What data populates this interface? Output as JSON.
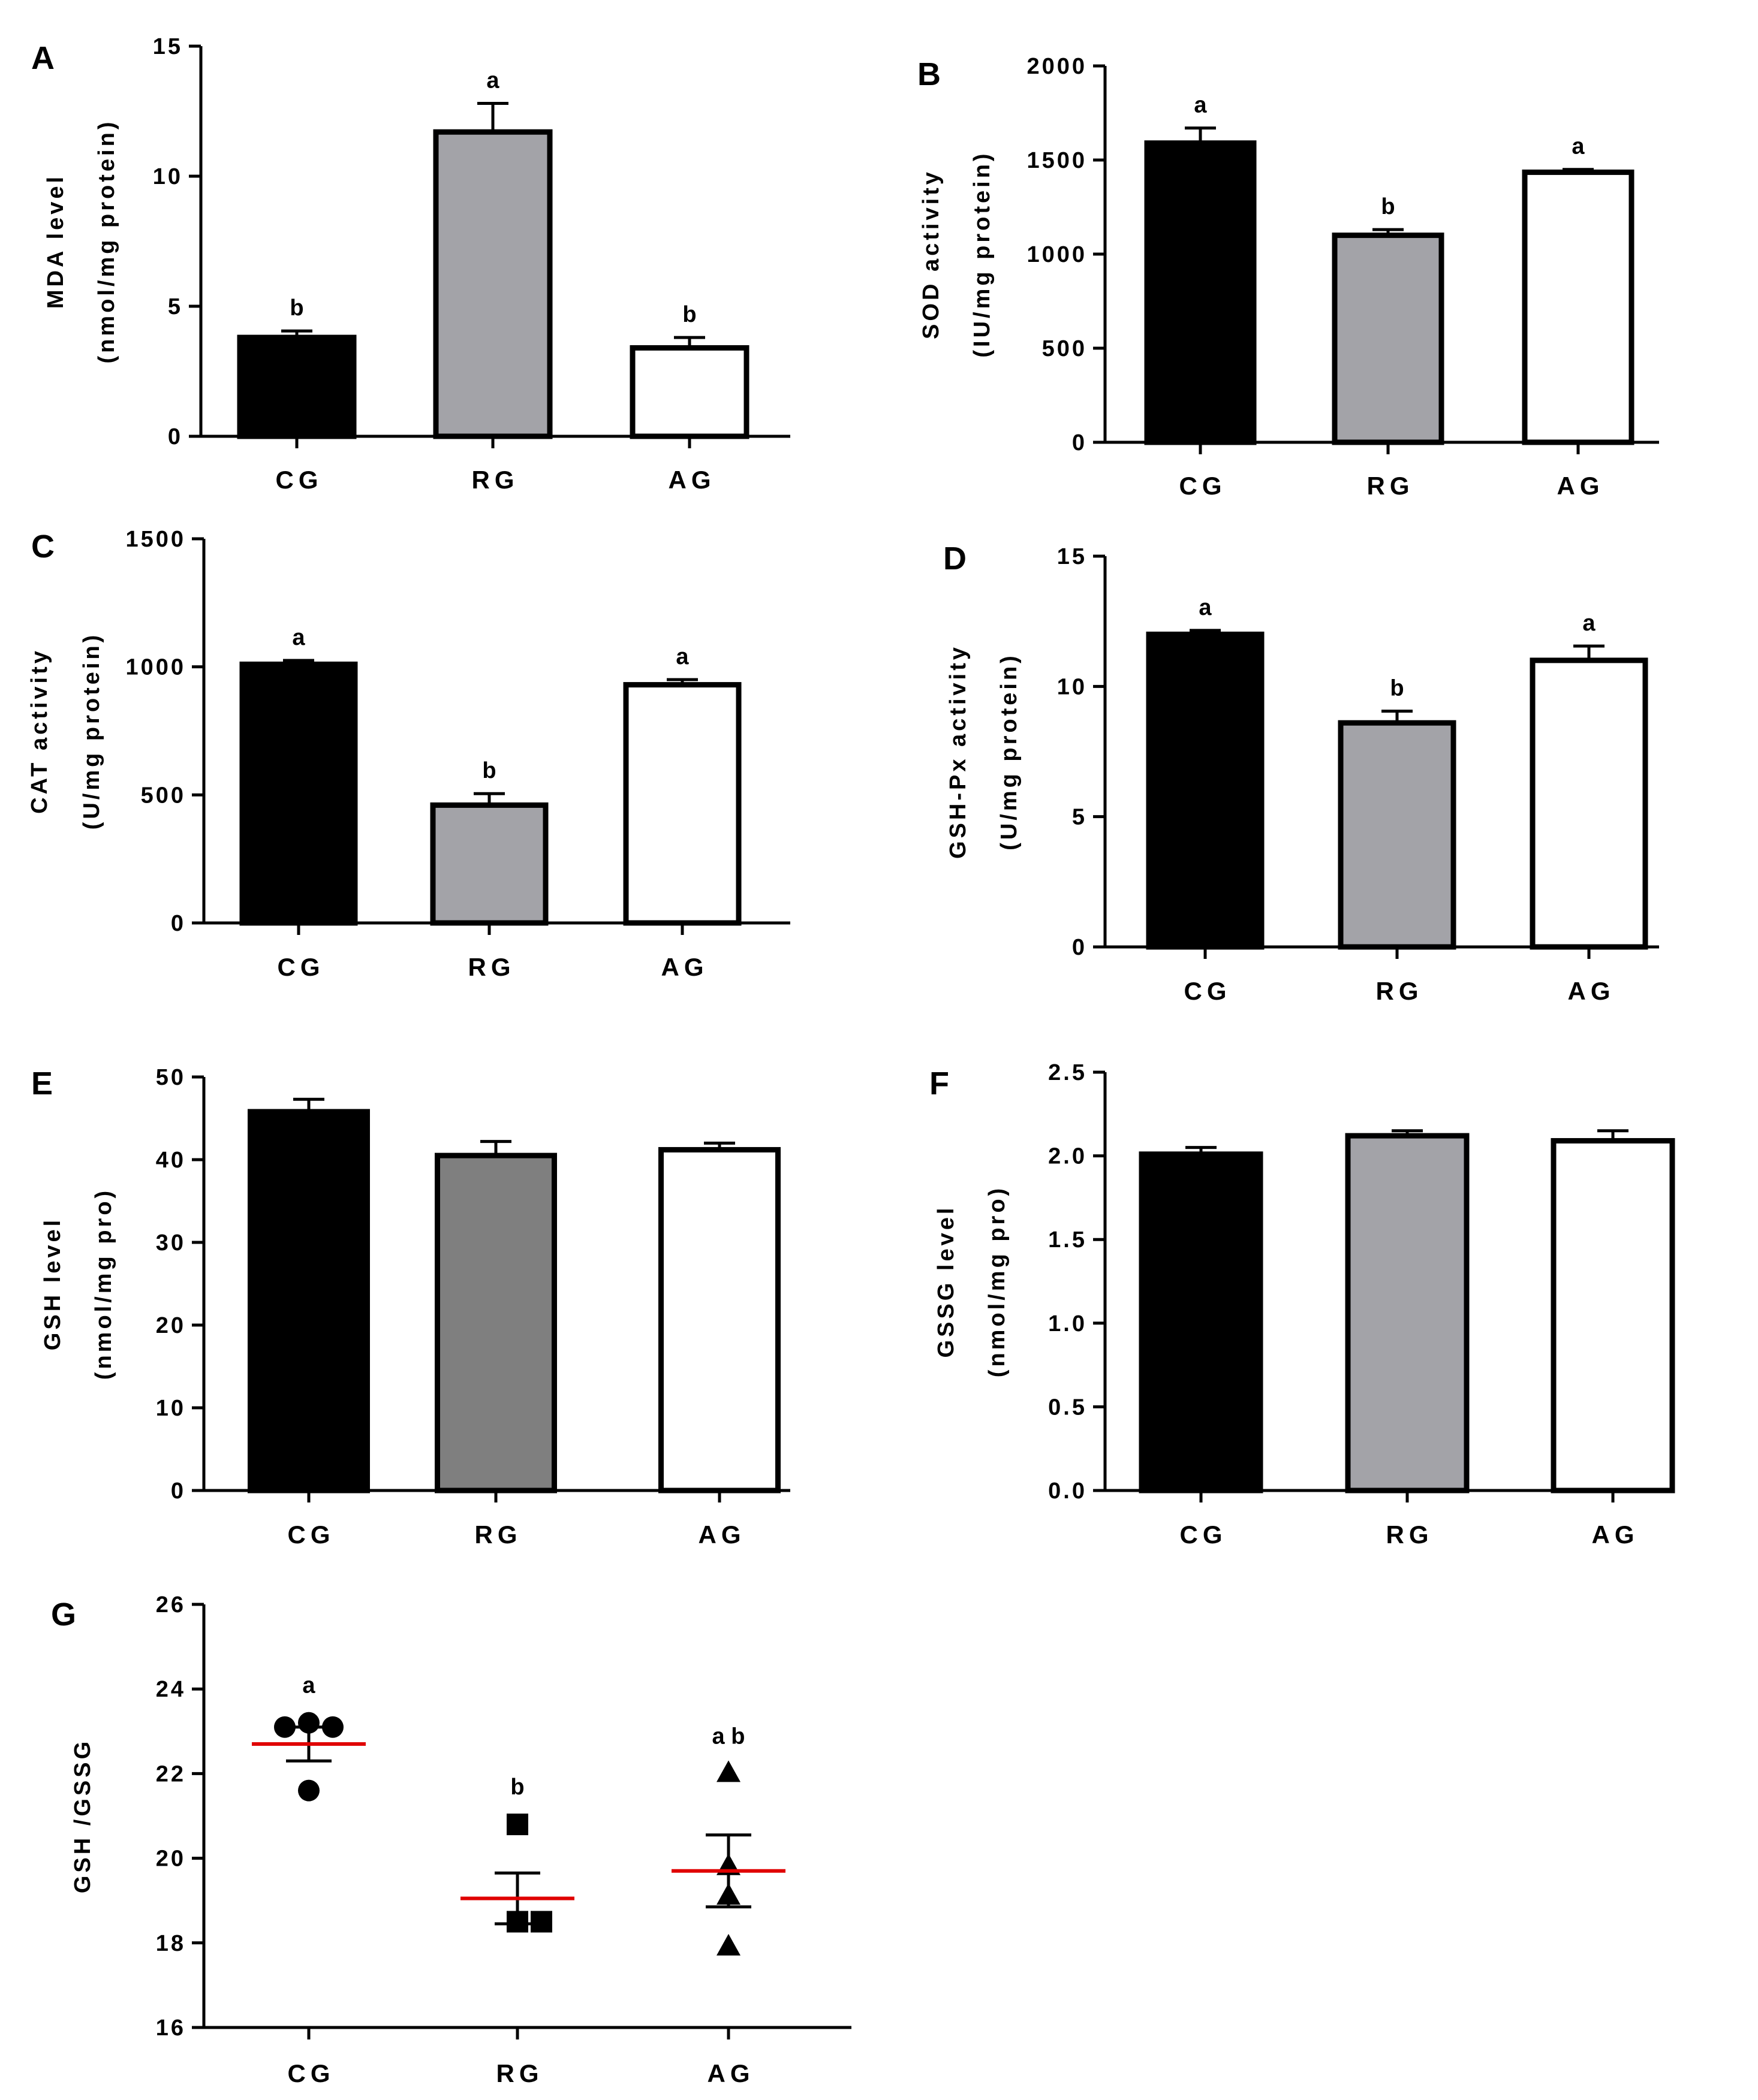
{
  "colors": {
    "axis": "#000000",
    "bar_cg": "#000000",
    "bar_rg_light": "#a3a3a8",
    "bar_rg_dark": "#7f7f7f",
    "bar_ag": "#ffffff",
    "mean_line": "#e00000"
  },
  "chart_data": [
    {
      "id": "A",
      "type": "bar",
      "panel": "A",
      "categories": [
        "CG",
        "RG",
        "AG"
      ],
      "values": [
        3.8,
        11.7,
        3.4
      ],
      "errors": [
        0.25,
        1.1,
        0.4
      ],
      "significance": [
        "b",
        "a",
        "b"
      ],
      "ylabel": [
        "MDA level",
        "(nmol/mg protein)"
      ],
      "ylim": [
        0,
        15
      ],
      "yticks": [
        0,
        5,
        10,
        15
      ],
      "tick_labels": [
        "0",
        "5",
        "10",
        "15"
      ],
      "fills": [
        "#000000",
        "#a3a3a8",
        "#ffffff"
      ]
    },
    {
      "id": "B",
      "type": "bar",
      "panel": "B",
      "categories": [
        "CG",
        "RG",
        "AG"
      ],
      "values": [
        1590,
        1100,
        1435
      ],
      "errors": [
        80,
        30,
        15
      ],
      "significance": [
        "a",
        "b",
        "a"
      ],
      "ylabel": [
        "SOD activity",
        "(IU/mg protein)"
      ],
      "ylim": [
        0,
        2000
      ],
      "yticks": [
        0,
        500,
        1000,
        1500,
        2000
      ],
      "tick_labels": [
        "0",
        "500",
        "1000",
        "1500",
        "2000"
      ],
      "fills": [
        "#000000",
        "#a3a3a8",
        "#ffffff"
      ]
    },
    {
      "id": "C",
      "type": "bar",
      "panel": "C",
      "categories": [
        "CG",
        "RG",
        "AG"
      ],
      "values": [
        1010,
        460,
        930
      ],
      "errors": [
        15,
        45,
        20
      ],
      "significance": [
        "a",
        "b",
        "a"
      ],
      "ylabel": [
        "CAT activity",
        "(U/mg protein)"
      ],
      "ylim": [
        0,
        1500
      ],
      "yticks": [
        0,
        500,
        1000,
        1500
      ],
      "tick_labels": [
        "0",
        "500",
        "1000",
        "1500"
      ],
      "fills": [
        "#000000",
        "#a3a3a8",
        "#ffffff"
      ]
    },
    {
      "id": "D",
      "type": "bar",
      "panel": "D",
      "categories": [
        "CG",
        "RG",
        "AG"
      ],
      "values": [
        12.0,
        8.6,
        11.0
      ],
      "errors": [
        0.15,
        0.45,
        0.55
      ],
      "significance": [
        "a",
        "b",
        "a"
      ],
      "ylabel": [
        "GSH-Px activity",
        "(U/mg protein)"
      ],
      "ylim": [
        0,
        15
      ],
      "yticks": [
        0,
        5,
        10,
        15
      ],
      "tick_labels": [
        "0",
        "5",
        "10",
        "15"
      ],
      "fills": [
        "#000000",
        "#a3a3a8",
        "#ffffff"
      ]
    },
    {
      "id": "E",
      "type": "bar",
      "panel": "E",
      "categories": [
        "CG",
        "RG",
        "AG"
      ],
      "values": [
        45.8,
        40.5,
        41.2
      ],
      "errors": [
        1.5,
        1.7,
        0.8
      ],
      "significance": [
        "",
        "",
        ""
      ],
      "ylabel": [
        "GSH level",
        "(nmol/mg pro)"
      ],
      "ylim": [
        0,
        50
      ],
      "yticks": [
        0,
        10,
        20,
        30,
        40,
        50
      ],
      "tick_labels": [
        "0",
        "10",
        "20",
        "30",
        "40",
        "50"
      ],
      "fills": [
        "#000000",
        "#7f7f7f",
        "#ffffff"
      ]
    },
    {
      "id": "F",
      "type": "bar",
      "panel": "F",
      "categories": [
        "CG",
        "RG",
        "AG"
      ],
      "values": [
        2.01,
        2.12,
        2.09
      ],
      "errors": [
        0.04,
        0.03,
        0.06
      ],
      "significance": [
        "",
        "",
        ""
      ],
      "ylabel": [
        "GSSG level",
        "(nmol/mg pro)"
      ],
      "ylim": [
        0,
        2.5
      ],
      "yticks": [
        0,
        0.5,
        1.0,
        1.5,
        2.0,
        2.5
      ],
      "tick_labels": [
        "0.0",
        "0.5",
        "1.0",
        "1.5",
        "2.0",
        "2.5"
      ],
      "fills": [
        "#000000",
        "#a3a3a8",
        "#ffffff"
      ]
    },
    {
      "id": "G",
      "type": "scatter",
      "panel": "G",
      "categories": [
        "CG",
        "RG",
        "AG"
      ],
      "points": [
        [
          23.1,
          23.2,
          23.1,
          21.6
        ],
        [
          20.8,
          18.5,
          18.5,
          18.5
        ],
        [
          22.0,
          19.8,
          19.1,
          17.9
        ]
      ],
      "markers": [
        "circle",
        "square",
        "triangle"
      ],
      "means": [
        22.7,
        19.05,
        19.7
      ],
      "sem": [
        0.4,
        0.6,
        0.85
      ],
      "significance": [
        "a",
        "b",
        "a b"
      ],
      "ylabel": [
        "GSH /GSSG"
      ],
      "ylim": [
        16,
        26
      ],
      "yticks": [
        16,
        18,
        20,
        22,
        24,
        26
      ],
      "tick_labels": [
        "16",
        "18",
        "20",
        "22",
        "24",
        "26"
      ]
    }
  ]
}
